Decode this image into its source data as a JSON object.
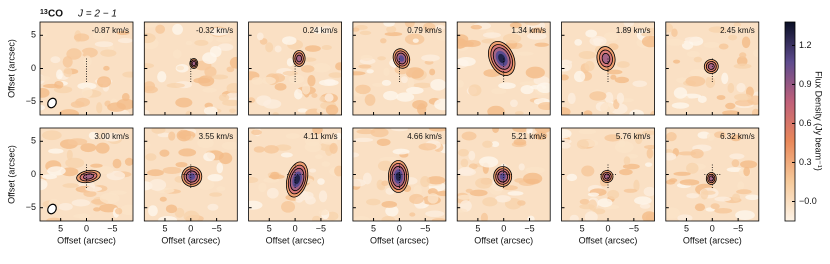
{
  "chart_data": {
    "type": "channel-map",
    "title": {
      "mass": "13",
      "molecule": "CO",
      "transition": "J = 2 − 1"
    },
    "panels": [
      {
        "velocity": "-0.87 km/s"
      },
      {
        "velocity": "-0.32 km/s"
      },
      {
        "velocity": "0.24 km/s"
      },
      {
        "velocity": "0.79 km/s"
      },
      {
        "velocity": "1.34 km/s"
      },
      {
        "velocity": "1.89 km/s"
      },
      {
        "velocity": "2.45 km/s"
      },
      {
        "velocity": "3.00 km/s"
      },
      {
        "velocity": "3.55 km/s"
      },
      {
        "velocity": "4.11 km/s"
      },
      {
        "velocity": "4.66 km/s"
      },
      {
        "velocity": "5.21 km/s"
      },
      {
        "velocity": "5.76 km/s"
      },
      {
        "velocity": "6.32 km/s"
      }
    ],
    "x_label": "Offset (arcsec)",
    "y_label": "Offset (arcsec)",
    "xlim": [
      9,
      -9
    ],
    "xticks": [
      5,
      0,
      {
        "value": -5,
        "label": "−5"
      }
    ],
    "ylim": [
      -7,
      7
    ],
    "yticks": [
      5,
      0,
      {
        "value": -5,
        "label": "−5"
      }
    ],
    "colorbar": {
      "label": "Flux Density (Jy beam⁻¹)",
      "lim": [
        -0.15,
        1.38
      ],
      "ticks": [
        {
          "value": 0,
          "label": "−0.0"
        },
        0.3,
        0.6,
        0.9,
        1.2
      ]
    }
  }
}
